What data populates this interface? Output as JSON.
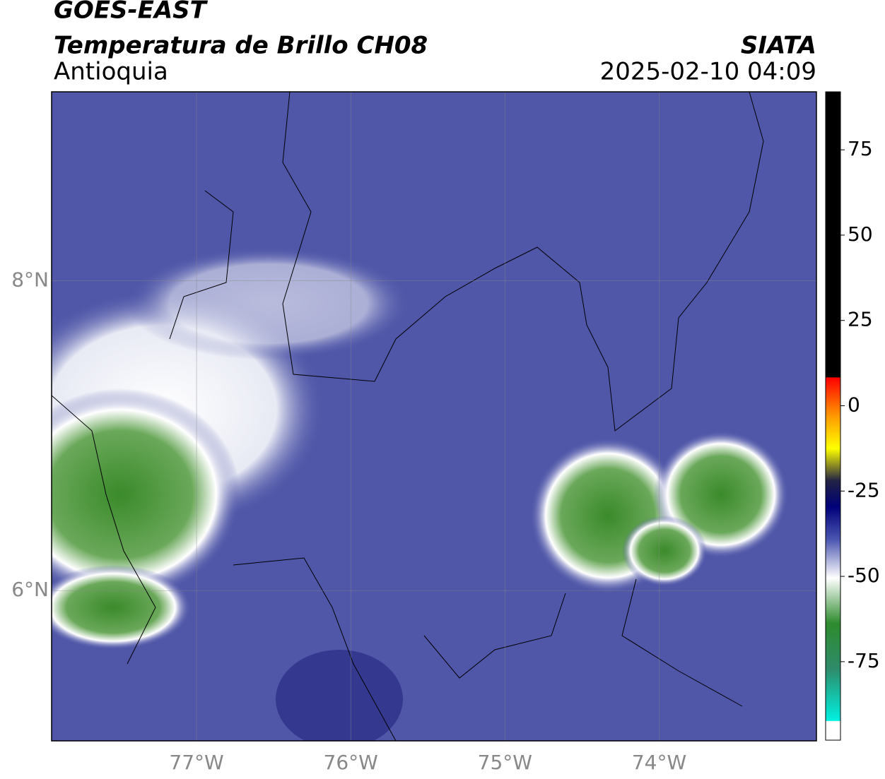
{
  "header": {
    "title": "GOES-EAST",
    "subtitle": "Temperatura de Brillo CH08",
    "region": "Antioquia",
    "brand": "SIATA",
    "datetime": "2025-02-10 04:09"
  },
  "map": {
    "lonlim": [
      -77.94,
      -72.98
    ],
    "latlim": [
      5.03,
      9.22
    ],
    "lon_ticks": [
      {
        "value": -77,
        "label": "77°W"
      },
      {
        "value": -76,
        "label": "76°W"
      },
      {
        "value": -75,
        "label": "75°W"
      },
      {
        "value": -74,
        "label": "74°W"
      }
    ],
    "lat_ticks": [
      {
        "value": 8,
        "label": "8°N"
      },
      {
        "value": 6,
        "label": "6°N"
      }
    ]
  },
  "colorbar": {
    "lim": [
      -98,
      92
    ],
    "ticks": [
      75,
      50,
      25,
      0,
      -25,
      -50,
      -75
    ]
  }
}
